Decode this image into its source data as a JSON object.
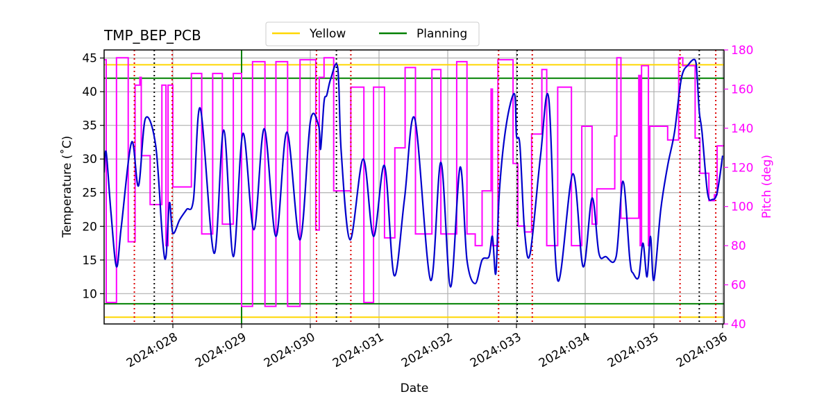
{
  "chart_data": {
    "type": "line",
    "title": "TMP_BEP_PCB",
    "xlabel": "Date",
    "ylabel": "Temperature ($^\\circ$C)",
    "ylabel_display": "Temperature (˚C)",
    "y2label": "Pitch (deg)",
    "xlim": [
      27.0,
      36.02
    ],
    "ylim": [
      5.5,
      46.2
    ],
    "y2lim": [
      40,
      180
    ],
    "x_ticks": [
      28,
      29,
      30,
      31,
      32,
      33,
      34,
      35,
      36
    ],
    "x_tick_labels": [
      "2024:028",
      "2024:029",
      "2024:030",
      "2024:031",
      "2024:032",
      "2024:033",
      "2024:034",
      "2024:035",
      "2024:036"
    ],
    "y_ticks": [
      10,
      15,
      20,
      25,
      30,
      35,
      40,
      45
    ],
    "y_tick_labels": [
      "10",
      "15",
      "20",
      "25",
      "30",
      "35",
      "40",
      "45"
    ],
    "y2_ticks": [
      40,
      60,
      80,
      100,
      120,
      140,
      160,
      180
    ],
    "y2_tick_labels": [
      "40",
      "60",
      "80",
      "100",
      "120",
      "140",
      "160",
      "180"
    ],
    "grid": true,
    "legend_position": "top-center",
    "colors": {
      "temperature": "#0000cc",
      "pitch": "#ff00ff",
      "yellow": "#ffd700",
      "planning": "#008000",
      "red_markers": "#dd0000",
      "black_markers": "#000000",
      "pitch_axis": "#ff00ff"
    },
    "limit_lines": [
      {
        "name": "Yellow",
        "color": "#ffd700",
        "values": [
          44.0,
          6.5
        ]
      },
      {
        "name": "Planning",
        "color": "#008000",
        "values": [
          42.0,
          8.5
        ]
      }
    ],
    "planning_vertical_x": 29.0,
    "red_dotted_x": [
      27.44,
      27.99,
      30.09,
      30.59,
      32.74,
      33.23,
      35.38,
      35.9
    ],
    "black_dotted_x": [
      27.73,
      30.38,
      33.01,
      35.66
    ],
    "series": [
      {
        "name": "Temperature",
        "axis": "left",
        "x": [
          27.0,
          27.03,
          27.1,
          27.18,
          27.25,
          27.4,
          27.5,
          27.6,
          27.75,
          27.85,
          27.9,
          27.95,
          28.0,
          28.1,
          28.2,
          28.3,
          28.4,
          28.6,
          28.74,
          28.88,
          29.02,
          29.18,
          29.33,
          29.5,
          29.66,
          29.85,
          30.0,
          30.12,
          30.15,
          30.2,
          30.24,
          30.3,
          30.4,
          30.45,
          30.58,
          30.77,
          30.92,
          31.08,
          31.22,
          31.37,
          31.52,
          31.75,
          31.9,
          32.04,
          32.18,
          32.28,
          32.4,
          32.5,
          32.6,
          32.65,
          32.7,
          32.75,
          32.85,
          32.97,
          33.0,
          33.05,
          33.12,
          33.2,
          33.35,
          33.47,
          33.6,
          33.82,
          33.97,
          34.1,
          34.2,
          34.3,
          34.45,
          34.55,
          34.65,
          34.7,
          34.78,
          34.84,
          34.9,
          34.95,
          35.0,
          35.1,
          35.2,
          35.3,
          35.4,
          35.5,
          35.6,
          35.63,
          35.66,
          35.7,
          35.78,
          35.85,
          35.92,
          36.0
        ],
        "values": [
          28.0,
          31.0,
          22.0,
          14.0,
          20.0,
          32.5,
          26.0,
          36.0,
          32.0,
          18.0,
          15.5,
          23.5,
          19.0,
          21.0,
          22.5,
          24.0,
          37.5,
          16.0,
          34.3,
          15.5,
          33.8,
          19.5,
          34.5,
          18.5,
          34.0,
          18.0,
          35.5,
          35.0,
          31.5,
          38.5,
          39.5,
          42.0,
          43.5,
          31.0,
          18.0,
          30.0,
          18.5,
          29.0,
          12.7,
          24.0,
          36.0,
          12.0,
          29.5,
          11.0,
          28.8,
          15.0,
          11.5,
          15.0,
          15.5,
          18.5,
          13.0,
          25.0,
          35.0,
          39.7,
          33.5,
          32.0,
          19.0,
          16.0,
          30.5,
          39.0,
          12.0,
          27.8,
          14.0,
          24.2,
          16.0,
          15.5,
          15.5,
          26.7,
          15.0,
          13.0,
          12.5,
          17.5,
          12.5,
          18.5,
          12.0,
          22.5,
          29.0,
          34.0,
          42.0,
          44.0,
          44.7,
          42.0,
          37.0,
          34.0,
          25.0,
          24.0,
          25.0,
          30.5
        ]
      },
      {
        "name": "Pitch",
        "axis": "right",
        "x": [
          27.0,
          27.03,
          27.03,
          27.18,
          27.18,
          27.35,
          27.35,
          27.45,
          27.45,
          27.52,
          27.52,
          27.54,
          27.54,
          27.67,
          27.67,
          27.84,
          27.84,
          27.9,
          27.9,
          27.93,
          27.93,
          28.0,
          28.0,
          28.27,
          28.27,
          28.42,
          28.42,
          28.58,
          28.58,
          28.72,
          28.72,
          28.88,
          28.88,
          29.0,
          29.0,
          29.16,
          29.16,
          29.34,
          29.34,
          29.5,
          29.5,
          29.67,
          29.67,
          29.85,
          29.85,
          30.08,
          30.08,
          30.13,
          30.13,
          30.2,
          30.2,
          30.34,
          30.34,
          30.59,
          30.59,
          30.78,
          30.78,
          30.92,
          30.92,
          31.08,
          31.08,
          31.23,
          31.23,
          31.38,
          31.38,
          31.53,
          31.53,
          31.77,
          31.77,
          31.9,
          31.9,
          32.13,
          32.13,
          32.28,
          32.28,
          32.4,
          32.4,
          32.5,
          32.5,
          32.63,
          32.63,
          32.65,
          32.65,
          32.73,
          32.73,
          32.95,
          32.95,
          33.02,
          33.02,
          33.12,
          33.12,
          33.22,
          33.22,
          33.37,
          33.37,
          33.44,
          33.44,
          33.6,
          33.6,
          33.8,
          33.8,
          33.95,
          33.95,
          34.1,
          34.1,
          34.17,
          34.17,
          34.43,
          34.43,
          34.46,
          34.46,
          34.52,
          34.52,
          34.78,
          34.78,
          34.8,
          34.8,
          34.82,
          34.82,
          34.92,
          34.92,
          34.94,
          34.94,
          35.2,
          35.2,
          35.36,
          35.36,
          35.42,
          35.42,
          35.6,
          35.6,
          35.67,
          35.67,
          35.8,
          35.8,
          35.88,
          35.88,
          35.92,
          35.92,
          36.02
        ],
        "values": [
          175,
          175,
          51,
          51,
          176,
          176,
          82,
          82,
          162,
          162,
          166,
          166,
          126,
          126,
          101,
          101,
          162,
          162,
          80,
          80,
          162,
          162,
          110,
          110,
          168,
          168,
          86,
          86,
          168,
          168,
          91,
          91,
          168,
          168,
          49,
          49,
          174,
          174,
          49,
          49,
          174,
          174,
          49,
          49,
          175,
          175,
          88,
          88,
          166,
          166,
          176,
          176,
          108,
          108,
          161,
          161,
          51,
          51,
          161,
          161,
          84,
          84,
          130,
          130,
          171,
          171,
          86,
          86,
          170,
          170,
          86,
          86,
          174,
          174,
          86,
          86,
          80,
          80,
          108,
          108,
          160,
          160,
          80,
          80,
          175,
          175,
          122,
          122,
          90,
          90,
          87,
          87,
          137,
          137,
          170,
          170,
          80,
          80,
          161,
          161,
          80,
          80,
          141,
          141,
          91,
          91,
          109,
          109,
          136,
          136,
          176,
          176,
          94,
          94,
          167,
          167,
          80,
          80,
          172,
          172,
          80,
          80,
          141,
          141,
          134,
          134,
          176,
          176,
          172,
          172,
          135,
          135,
          117,
          117,
          103,
          103,
          106,
          106,
          131,
          131
        ]
      }
    ]
  },
  "legend": {
    "items": [
      {
        "label": "Yellow",
        "color": "#ffd700"
      },
      {
        "label": "Planning",
        "color": "#008000"
      }
    ]
  }
}
